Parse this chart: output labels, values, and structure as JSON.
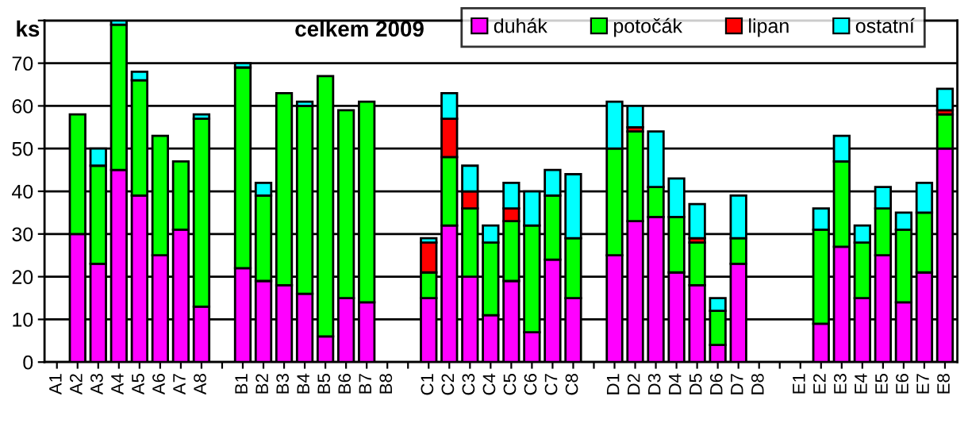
{
  "chart_data": {
    "type": "bar",
    "title": "celkem 2009",
    "ylabel": "ks",
    "stacked": true,
    "grid": "y",
    "legend": "top right",
    "categories": [
      "A1",
      "A2",
      "A3",
      "A4",
      "A5",
      "A6",
      "A7",
      "A8",
      null,
      "B1",
      "B2",
      "B3",
      "B4",
      "B5",
      "B6",
      "B7",
      "B8",
      null,
      "C1",
      "C2",
      "C3",
      "C4",
      "C5",
      "C6",
      "C7",
      "C8",
      null,
      "D1",
      "D2",
      "D3",
      "D4",
      "D5",
      "D6",
      "D7",
      "D8",
      null,
      "E1",
      "E2",
      "E3",
      "E4",
      "E5",
      "E6",
      "E7",
      "E8"
    ],
    "ylim": [
      0,
      80
    ],
    "yticks": [
      0,
      10,
      20,
      30,
      40,
      50,
      60,
      70,
      {
        "value": 80,
        "label": null
      }
    ],
    "series": [
      {
        "name": "duhák",
        "color": "#ff00ff",
        "values": [
          0,
          30,
          23,
          45,
          39,
          25,
          31,
          13,
          0,
          22,
          19,
          18,
          16,
          6,
          15,
          14,
          0,
          0,
          15,
          32,
          20,
          11,
          19,
          7,
          24,
          15,
          0,
          25,
          33,
          34,
          21,
          18,
          4,
          23,
          0,
          0,
          0,
          9,
          27,
          15,
          25,
          14,
          21,
          50
        ]
      },
      {
        "name": "potočák",
        "color": "#00ff00",
        "values": [
          0,
          28,
          23,
          34,
          27,
          28,
          16,
          44,
          0,
          47,
          20,
          45,
          44,
          61,
          44,
          47,
          0,
          0,
          6,
          16,
          16,
          17,
          14,
          25,
          15,
          14,
          0,
          25,
          21,
          7,
          13,
          10,
          8,
          6,
          0,
          0,
          0,
          22,
          20,
          13,
          11,
          17,
          14,
          8
        ]
      },
      {
        "name": "lipan",
        "color": "#ff0000",
        "values": [
          0,
          0,
          0,
          0,
          0,
          0,
          0,
          0,
          0,
          0,
          0,
          0,
          0,
          0,
          0,
          0,
          0,
          0,
          7,
          9,
          4,
          0,
          3,
          0,
          0,
          0,
          0,
          0,
          1,
          0,
          0,
          1,
          0,
          0,
          0,
          0,
          0,
          0,
          0,
          0,
          0,
          0,
          0,
          1
        ]
      },
      {
        "name": "ostatní",
        "color": "#00ffff",
        "values": [
          0,
          0,
          4,
          1,
          2,
          0,
          0,
          1,
          0,
          1,
          3,
          0,
          1,
          0,
          0,
          0,
          0,
          0,
          1,
          6,
          6,
          4,
          6,
          8,
          6,
          15,
          0,
          11,
          5,
          13,
          9,
          8,
          3,
          10,
          0,
          0,
          0,
          5,
          6,
          4,
          5,
          4,
          7,
          5
        ]
      }
    ]
  }
}
